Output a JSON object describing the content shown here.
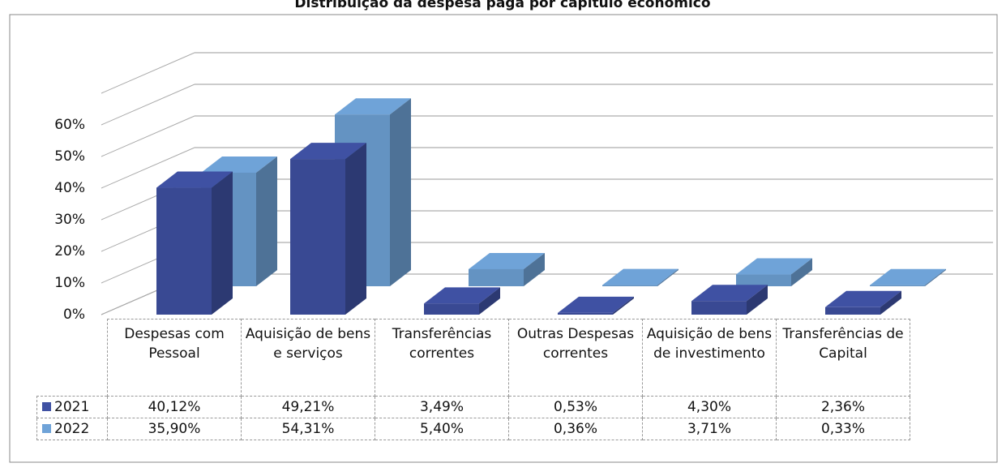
{
  "chart_data": {
    "type": "bar3d",
    "title": "Distribuição da despesa paga por capítulo económico",
    "categories": [
      "Despesas com Pessoal",
      "Aquisição de bens e serviços",
      "Transferências correntes",
      "Outras Despesas correntes",
      "Aquisição de bens de investimento",
      "Transferências de Capital"
    ],
    "series": [
      {
        "name": "2021",
        "color": "#3f51a3",
        "values": [
          40.12,
          49.21,
          3.49,
          0.53,
          4.3,
          2.36
        ],
        "value_labels": [
          "40,12%",
          "49,21%",
          "3,49%",
          "0,53%",
          "4,30%",
          "2,36%"
        ]
      },
      {
        "name": "2022",
        "color": "#6fa3d8",
        "values": [
          35.9,
          54.31,
          5.4,
          0.36,
          3.71,
          0.33
        ],
        "value_labels": [
          "35,90%",
          "54,31%",
          "5,40%",
          "0,36%",
          "3,71%",
          "0,33%"
        ]
      }
    ],
    "ylim": [
      0,
      70
    ],
    "yticks": [
      {
        "value": 0,
        "label": "0%"
      },
      {
        "value": 10,
        "label": "10%"
      },
      {
        "value": 20,
        "label": "20%"
      },
      {
        "value": 30,
        "label": "30%"
      },
      {
        "value": 40,
        "label": "40%"
      },
      {
        "value": 50,
        "label": "50%"
      },
      {
        "value": 60,
        "label": "60%"
      }
    ],
    "grid": true
  }
}
